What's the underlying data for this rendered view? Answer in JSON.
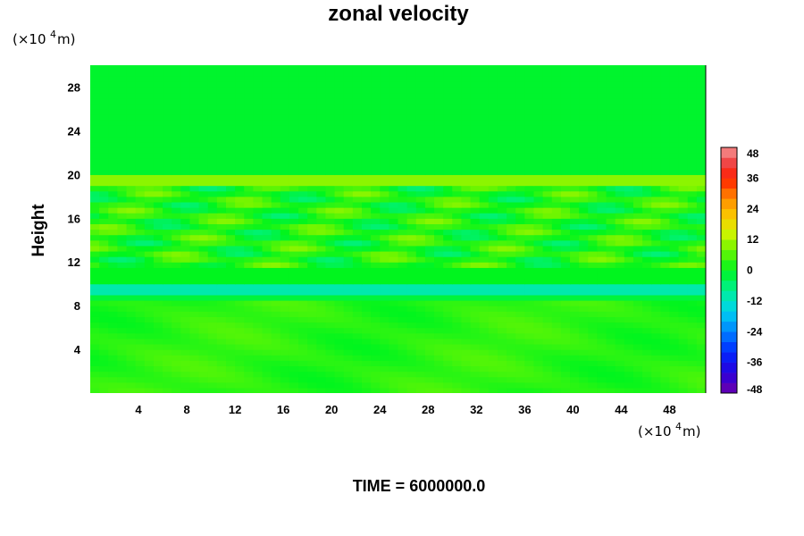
{
  "chart_data": {
    "type": "heatmap",
    "title": "zonal velocity",
    "ylabel": "Height",
    "xlabel": "",
    "x_unit": {
      "base": "(×10",
      "exp": "4",
      "rest": " m)"
    },
    "y_unit": {
      "base": "(×10",
      "exp": "4",
      "rest": " m)"
    },
    "xlim": [
      0,
      51
    ],
    "ylim": [
      0,
      30
    ],
    "x_ticks": [
      4,
      8,
      12,
      16,
      20,
      24,
      28,
      32,
      36,
      40,
      44,
      48
    ],
    "y_ticks": [
      4,
      8,
      12,
      16,
      20,
      24,
      28
    ],
    "colorbar": {
      "min": -48,
      "max": 48,
      "step": 4,
      "ticks": [
        48,
        36,
        24,
        12,
        0,
        -12,
        -24,
        -36,
        -48
      ]
    },
    "annotation": "TIME = 6000000.0",
    "field_description_bands": [
      {
        "y_range": [
          0,
          8.5
        ],
        "value": 3
      },
      {
        "y_range": [
          8.5,
          9.0
        ],
        "value": -2
      },
      {
        "y_range": [
          9.0,
          10.0
        ],
        "value": -10
      },
      {
        "y_range": [
          10.0,
          11.5
        ],
        "value": 0
      },
      {
        "y_range": [
          11.5,
          19.0
        ],
        "value": 2
      },
      {
        "y_range": [
          19.0,
          19.8
        ],
        "value": 10
      },
      {
        "y_range": [
          19.8,
          30
        ],
        "value": -1
      }
    ]
  }
}
